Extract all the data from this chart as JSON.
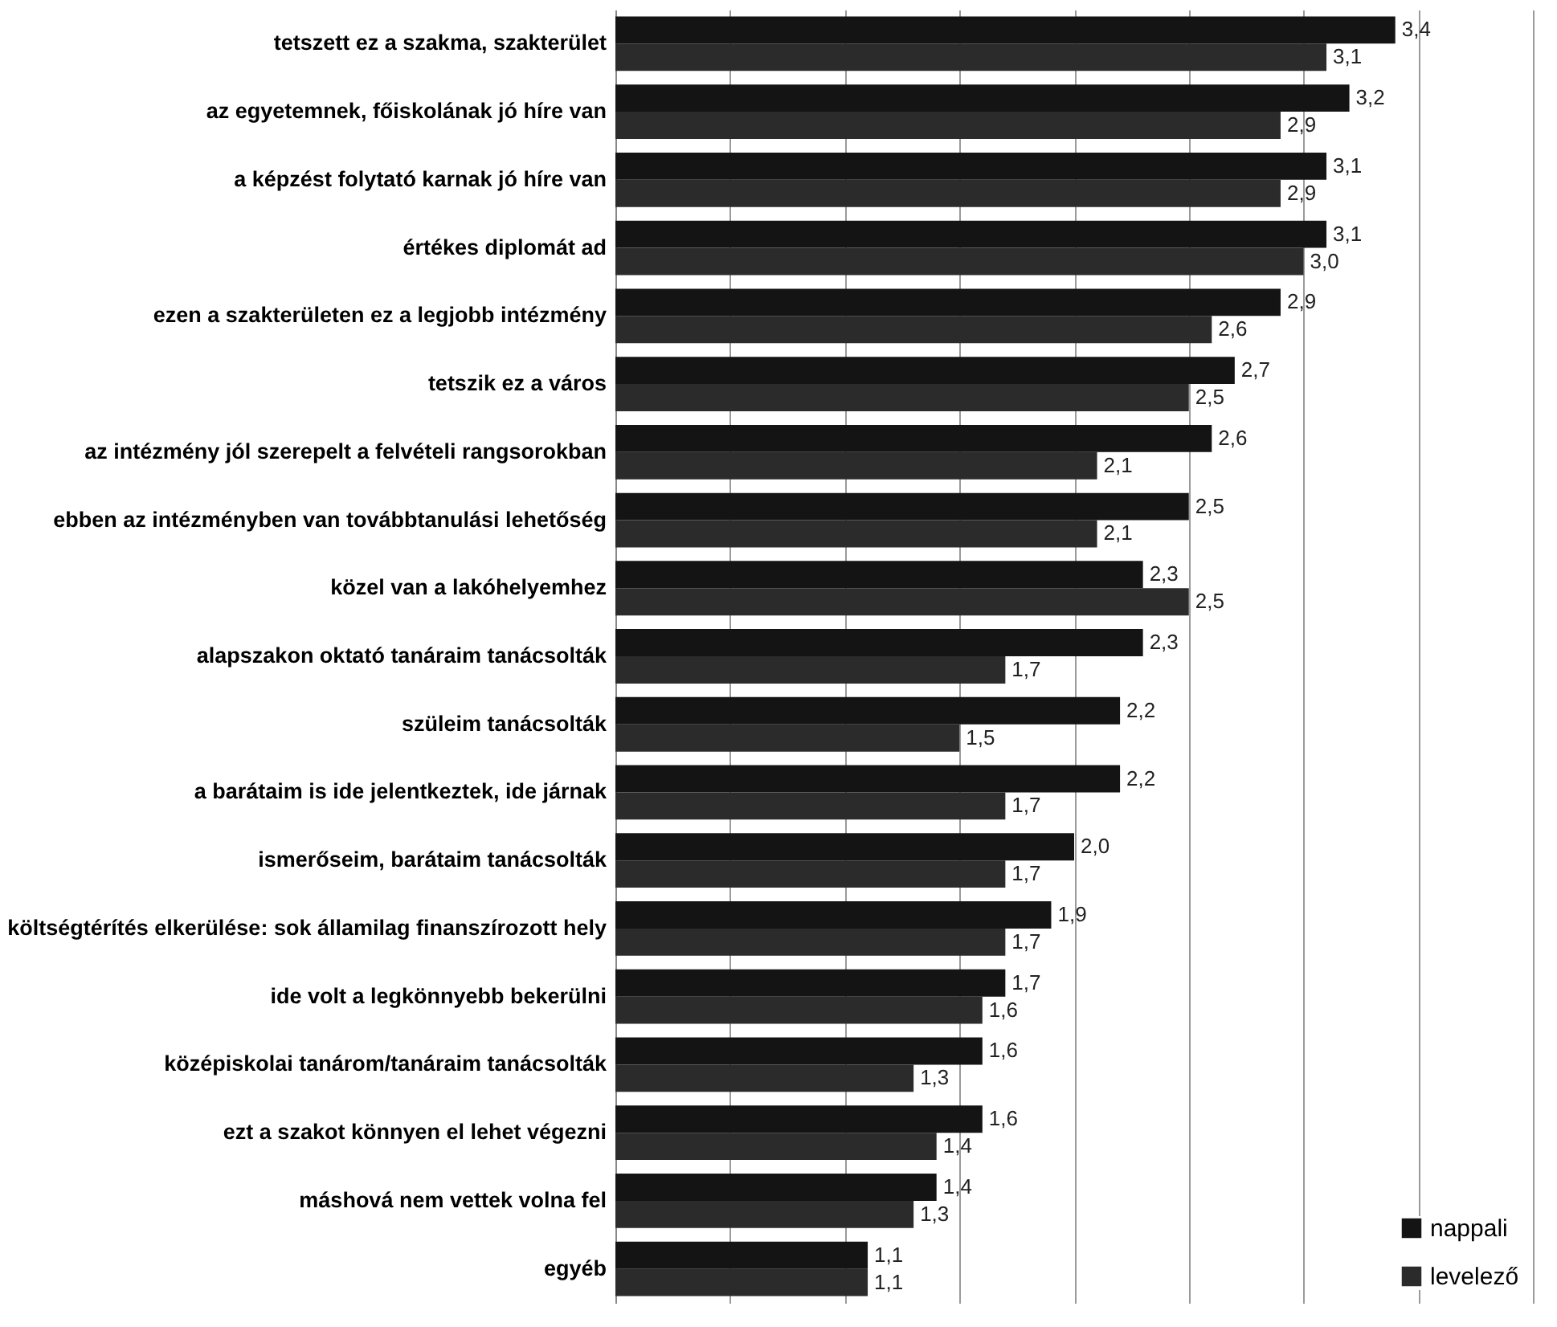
{
  "chart_data": {
    "type": "bar",
    "orientation": "horizontal",
    "categories": [
      "tetszett ez a szakma, szakterület",
      "az egyetemnek, főiskolának jó híre van",
      "a képzést folytató karnak jó híre van",
      "értékes diplomát ad",
      "ezen a szakterületen ez a legjobb intézmény",
      "tetszik ez a város",
      "az intézmény jól szerepelt a felvételi rangsorokban",
      "ebben az intézményben van továbbtanulási lehetőség",
      "közel van a lakóhelyemhez",
      "alapszakon oktató tanáraim tanácsolták",
      "szüleim tanácsolták",
      "a barátaim is ide jelentkeztek, ide járnak",
      "ismerőseim, barátaim tanácsolták",
      "költségtérítés elkerülése: sok államilag finanszírozott hely",
      "ide volt a legkönnyebb bekerülni",
      "középiskolai tanárom/tanáraim tanácsolták",
      "ezt a szakot könnyen el lehet végezni",
      "máshová nem vettek volna fel",
      "egyéb"
    ],
    "series": [
      {
        "name": "nappali",
        "color": "#141414",
        "values": [
          3.4,
          3.2,
          3.1,
          3.1,
          2.9,
          2.7,
          2.6,
          2.5,
          2.3,
          2.3,
          2.2,
          2.2,
          2.0,
          1.9,
          1.7,
          1.6,
          1.6,
          1.4,
          1.1
        ],
        "value_labels": [
          "3,4",
          "3,2",
          "3,1",
          "3,1",
          "2,9",
          "2,7",
          "2,6",
          "2,5",
          "2,3",
          "2,3",
          "2,2",
          "2,2",
          "2,0",
          "1,9",
          "1,7",
          "1,6",
          "1,6",
          "1,4",
          "1,1"
        ]
      },
      {
        "name": "levelező",
        "color": "#2b2b2b",
        "values": [
          3.1,
          2.9,
          2.9,
          3.0,
          2.6,
          2.5,
          2.1,
          2.1,
          2.5,
          1.7,
          1.5,
          1.7,
          1.7,
          1.7,
          1.6,
          1.3,
          1.4,
          1.3,
          1.1
        ],
        "value_labels": [
          "3,1",
          "2,9",
          "2,9",
          "3,0",
          "2,6",
          "2,5",
          "2,1",
          "2,1",
          "2,5",
          "1,7",
          "1,5",
          "1,7",
          "1,7",
          "1,7",
          "1,6",
          "1,3",
          "1,4",
          "1,3",
          "1,1"
        ]
      }
    ],
    "xlim": [
      0,
      4
    ],
    "xticks": [
      {
        "value": 0,
        "label": null
      },
      {
        "value": 0.5,
        "label": null
      },
      {
        "value": 1,
        "label": null
      },
      {
        "value": 1.5,
        "label": null
      },
      {
        "value": 2,
        "label": null
      },
      {
        "value": 2.5,
        "label": null
      },
      {
        "value": 3,
        "label": null
      },
      {
        "value": 3.5,
        "label": null
      },
      {
        "value": 4,
        "label": null
      }
    ],
    "grid": "x",
    "tick_labels": "y",
    "legend": "bottom right"
  }
}
